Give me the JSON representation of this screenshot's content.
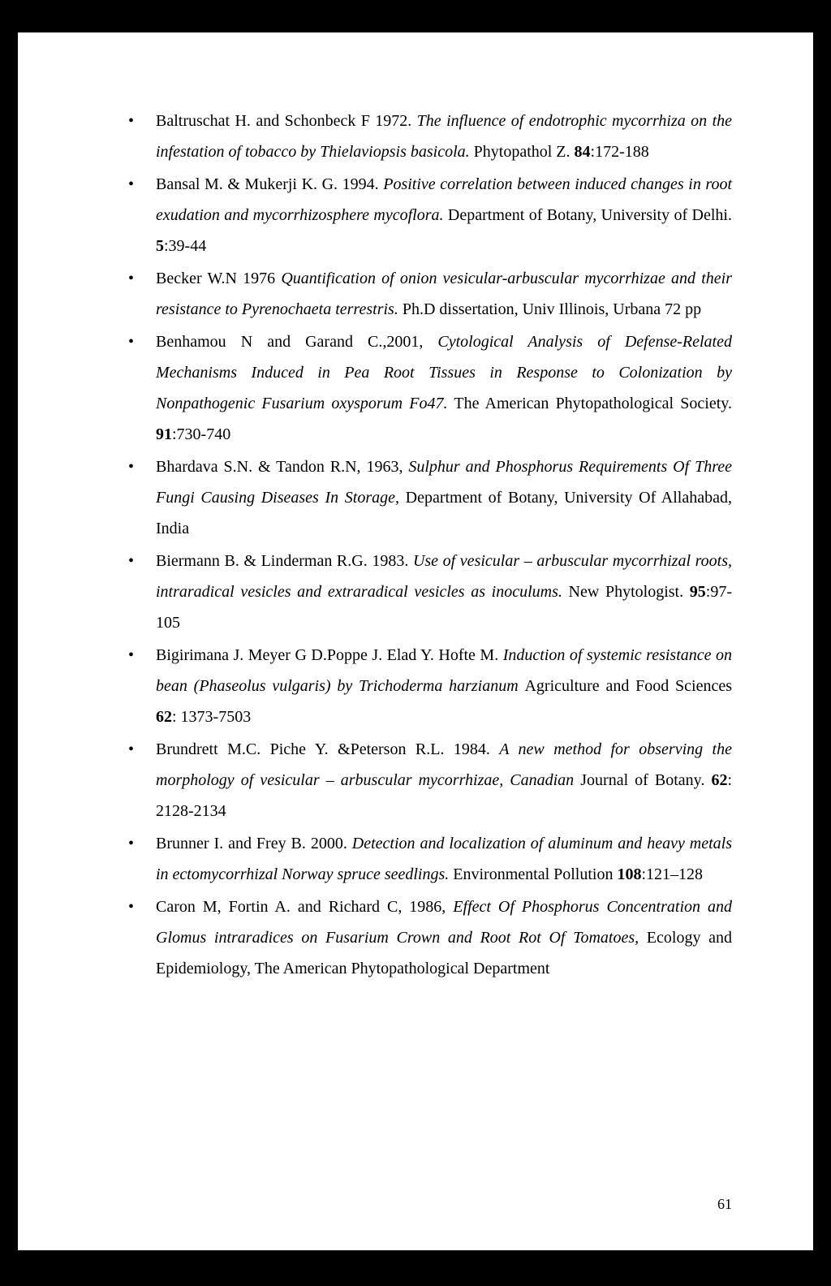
{
  "page_number": "61",
  "references": [
    {
      "segments": [
        {
          "text": "Baltruschat H. and Schonbeck F 1972. ",
          "italic": false,
          "bold": false
        },
        {
          "text": "The influence of endotrophic mycorrhiza on the infestation of tobacco by Thielaviopsis basicola.",
          "italic": true,
          "bold": false
        },
        {
          "text": " Phytopathol Z. ",
          "italic": false,
          "bold": false
        },
        {
          "text": "84",
          "italic": false,
          "bold": true
        },
        {
          "text": ":172-188",
          "italic": false,
          "bold": false
        }
      ]
    },
    {
      "segments": [
        {
          "text": "Bansal M. & Mukerji K. G. 1994. ",
          "italic": false,
          "bold": false
        },
        {
          "text": "Positive correlation between induced changes in root exudation and mycorrhizosphere mycoflora.",
          "italic": true,
          "bold": false
        },
        {
          "text": " Department of Botany, University of Delhi. ",
          "italic": false,
          "bold": false
        },
        {
          "text": "5",
          "italic": false,
          "bold": true
        },
        {
          "text": ":39-44",
          "italic": false,
          "bold": false
        }
      ]
    },
    {
      "segments": [
        {
          "text": "Becker W.N 1976 ",
          "italic": false,
          "bold": false
        },
        {
          "text": "Quantification of onion vesicular-arbuscular mycorrhizae and their resistance to Pyrenochaeta terrestris.",
          "italic": true,
          "bold": false
        },
        {
          "text": " Ph.D dissertation, Univ Illinois, Urbana 72 pp",
          "italic": false,
          "bold": false
        }
      ]
    },
    {
      "segments": [
        {
          "text": "Benhamou N and Garand C.,2001, ",
          "italic": false,
          "bold": false
        },
        {
          "text": "Cytological Analysis of Defense-Related Mechanisms Induced in Pea Root Tissues in Response to Colonization by Nonpathogenic Fusarium oxysporum Fo47.",
          "italic": true,
          "bold": false
        },
        {
          "text": " The American Phytopathological Society. ",
          "italic": false,
          "bold": false
        },
        {
          "text": "91",
          "italic": false,
          "bold": true
        },
        {
          "text": ":730-740",
          "italic": false,
          "bold": false
        }
      ]
    },
    {
      "segments": [
        {
          "text": "Bhardava S.N. & Tandon R.N, 1963, ",
          "italic": false,
          "bold": false
        },
        {
          "text": "Sulphur and Phosphorus Requirements Of Three Fungi Causing Diseases In Storage,",
          "italic": true,
          "bold": false
        },
        {
          "text": " Department of Botany, University Of Allahabad, India",
          "italic": false,
          "bold": false
        }
      ]
    },
    {
      "segments": [
        {
          "text": "Biermann B. & Linderman R.G. 1983. ",
          "italic": false,
          "bold": false
        },
        {
          "text": "Use of vesicular – arbuscular mycorrhizal roots, intraradical vesicles and extraradical vesicles as inoculums.",
          "italic": true,
          "bold": false
        },
        {
          "text": " New Phytologist. ",
          "italic": false,
          "bold": false
        },
        {
          "text": "95",
          "italic": false,
          "bold": true
        },
        {
          "text": ":97-105",
          "italic": false,
          "bold": false
        }
      ]
    },
    {
      "segments": [
        {
          "text": "Bigirimana J. Meyer G D.Poppe J. Elad Y. Hofte M. ",
          "italic": false,
          "bold": false
        },
        {
          "text": "Induction of systemic resistance on bean (Phaseolus vulgaris) by Trichoderma harzianum ",
          "italic": true,
          "bold": false
        },
        {
          "text": "Agriculture and Food Sciences ",
          "italic": false,
          "bold": false
        },
        {
          "text": "62",
          "italic": false,
          "bold": true
        },
        {
          "text": ": 1373-7503",
          "italic": false,
          "bold": false
        }
      ]
    },
    {
      "segments": [
        {
          "text": "Brundrett M.C. Piche Y. &Peterson R.L. 1984. ",
          "italic": false,
          "bold": false
        },
        {
          "text": "A new method for observing the morphology of vesicular – arbuscular mycorrhizae, Canadian ",
          "italic": true,
          "bold": false
        },
        {
          "text": "Journal of Botany. ",
          "italic": false,
          "bold": false
        },
        {
          "text": "62",
          "italic": false,
          "bold": true
        },
        {
          "text": ": 2128-2134",
          "italic": false,
          "bold": false
        }
      ]
    },
    {
      "segments": [
        {
          "text": "Brunner I. and Frey B. 2000. ",
          "italic": false,
          "bold": false
        },
        {
          "text": "Detection and localization of aluminum and heavy metals in ectomycorrhizal Norway spruce seedlings.",
          "italic": true,
          "bold": false
        },
        {
          "text": " Environmental Pollution ",
          "italic": false,
          "bold": false
        },
        {
          "text": "108",
          "italic": false,
          "bold": true
        },
        {
          "text": ":121–128",
          "italic": false,
          "bold": false
        }
      ]
    },
    {
      "segments": [
        {
          "text": "Caron M, Fortin A. and Richard C, 1986, ",
          "italic": false,
          "bold": false
        },
        {
          "text": "Effect Of Phosphorus Concentration and Glomus intraradices on Fusarium Crown and Root Rot Of Tomatoes,",
          "italic": true,
          "bold": false
        },
        {
          "text": " Ecology and Epidemiology, The American Phytopathological Department",
          "italic": false,
          "bold": false
        }
      ]
    }
  ]
}
